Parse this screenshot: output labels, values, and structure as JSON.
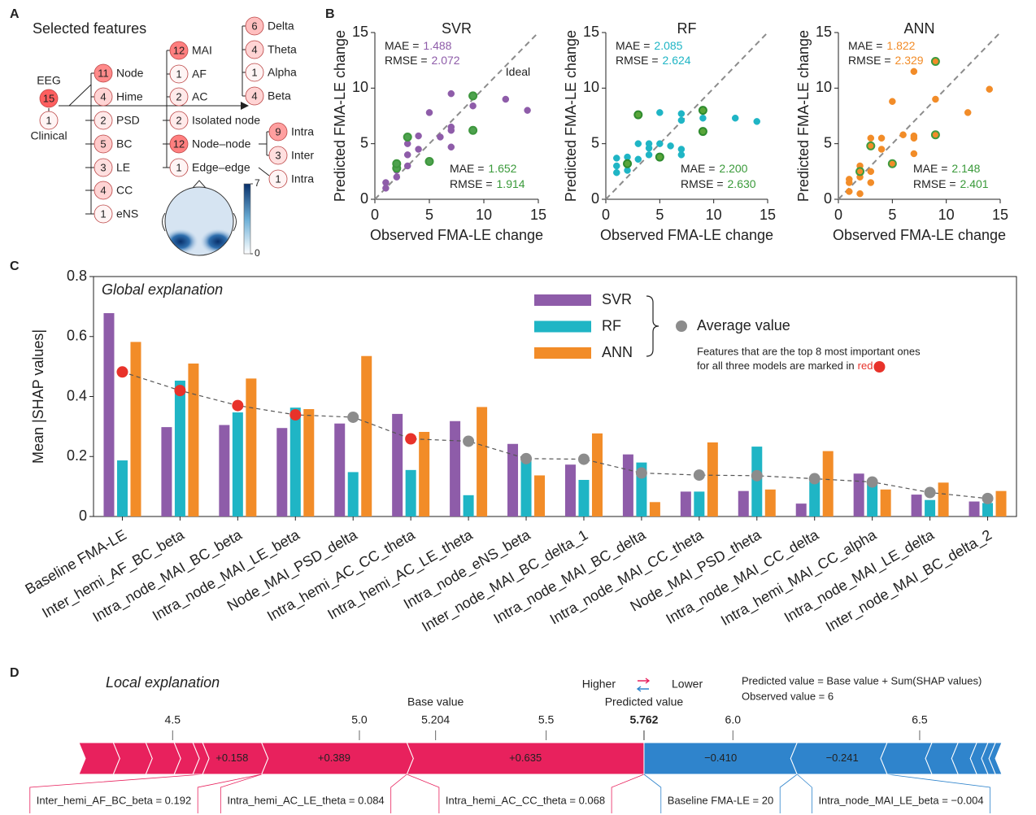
{
  "panel_labels": [
    "A",
    "B",
    "C",
    "D"
  ],
  "feature_tree": {
    "title": "Selected features",
    "nodes": [
      {
        "label": "EEG",
        "count": 15
      },
      {
        "label": "Clinical",
        "count": 1
      },
      {
        "label": "Node",
        "count": 11
      },
      {
        "label": "Hime",
        "count": 4
      },
      {
        "label": "PSD",
        "count": 2
      },
      {
        "label": "BC",
        "count": 5
      },
      {
        "label": "LE",
        "count": 3
      },
      {
        "label": "CC",
        "count": 4
      },
      {
        "label": "eNS",
        "count": 1
      },
      {
        "label": "MAI",
        "count": 12
      },
      {
        "label": "AF",
        "count": 1
      },
      {
        "label": "AC",
        "count": 2
      },
      {
        "label": "Isolated node",
        "count": 2
      },
      {
        "label": "Node–node",
        "count": 12
      },
      {
        "label": "Edge–edge",
        "count": 1
      },
      {
        "label": "Delta",
        "count": 6
      },
      {
        "label": "Theta",
        "count": 4
      },
      {
        "label": "Alpha",
        "count": 1
      },
      {
        "label": "Beta",
        "count": 4
      },
      {
        "label": "Intra",
        "count": 9
      },
      {
        "label": "Inter",
        "count": 3
      },
      {
        "label": "Intra",
        "count": 1
      }
    ]
  },
  "topomap": {
    "colorbar_ticks": [
      0,
      7
    ]
  },
  "chart_data": [
    {
      "type": "scatter",
      "title": "SVR",
      "xlabel": "Observed FMA-LE change",
      "ylabel": "Predicted FMA-LE change",
      "xlim": [
        0,
        15
      ],
      "ylim": [
        0,
        15
      ],
      "xticks": [
        0,
        5,
        10,
        15
      ],
      "yticks": [
        0,
        5,
        10,
        15
      ],
      "ideal_label": "Ideal",
      "series": [
        {
          "color": "#8e5ca9",
          "fill": "#8e5ca9",
          "x": [
            1,
            1,
            2,
            2,
            3,
            3,
            3,
            4,
            4,
            5,
            6,
            7,
            7,
            7,
            7,
            9,
            12,
            14
          ],
          "values": [
            1.0,
            1.5,
            2.0,
            2.6,
            4.0,
            5.0,
            3.0,
            5.7,
            4.5,
            7.8,
            5.6,
            9.5,
            6.5,
            6.2,
            4.7,
            8.4,
            9.0,
            8.0
          ]
        },
        {
          "color": "#3d963d",
          "fill": "#4ea24e",
          "x": [
            2,
            2,
            3,
            5,
            9,
            9
          ],
          "values": [
            2.8,
            3.2,
            5.6,
            3.4,
            9.3,
            6.2
          ]
        }
      ],
      "annotations": [
        {
          "label": "MAE =",
          "value": "1.488",
          "color": "#8e5ca9"
        },
        {
          "label": "RMSE =",
          "value": "2.072",
          "color": "#8e5ca9"
        },
        {
          "label": "MAE =",
          "value": "1.652",
          "color": "#3a9a3a"
        },
        {
          "label": "RMSE =",
          "value": "1.914",
          "color": "#3a9a3a"
        }
      ]
    },
    {
      "type": "scatter",
      "title": "RF",
      "xlabel": "Observed FMA-LE change",
      "ylabel": "Predicted FMA-LE change",
      "xlim": [
        0,
        15
      ],
      "ylim": [
        0,
        15
      ],
      "xticks": [
        0,
        5,
        10,
        15
      ],
      "yticks": [
        0,
        5,
        10,
        15
      ],
      "series": [
        {
          "color": "#1fb5c5",
          "fill": "#1fb5c5",
          "x": [
            1,
            1,
            1,
            2,
            2,
            3,
            3,
            4,
            4,
            4,
            5,
            5,
            6,
            7,
            7,
            7,
            7,
            9,
            12,
            14
          ],
          "values": [
            3.7,
            3.0,
            2.4,
            3.8,
            2.6,
            5.0,
            3.6,
            5.0,
            4.6,
            4.0,
            7.8,
            5.0,
            4.8,
            4.5,
            4.0,
            7.7,
            7.1,
            7.3,
            7.3,
            7.0
          ]
        },
        {
          "color": "#2e8b2e",
          "fill": "#5aa53a",
          "x": [
            2,
            3,
            5,
            9,
            9
          ],
          "values": [
            3.2,
            7.6,
            3.8,
            8.0,
            6.1
          ]
        }
      ],
      "annotations": [
        {
          "label": "MAE =",
          "value": "2.085",
          "color": "#1fb5c5"
        },
        {
          "label": "RMSE =",
          "value": "2.624",
          "color": "#1fb5c5"
        },
        {
          "label": "MAE =",
          "value": "2.200",
          "color": "#3a9a3a"
        },
        {
          "label": "RMSE =",
          "value": "2.630",
          "color": "#3a9a3a"
        }
      ]
    },
    {
      "type": "scatter",
      "title": "ANN",
      "xlabel": "Observed FMA-LE change",
      "ylabel": "Predicted FMA-LE change",
      "xlim": [
        0,
        15
      ],
      "ylim": [
        0,
        15
      ],
      "xticks": [
        0,
        5,
        10,
        15
      ],
      "yticks": [
        0,
        5,
        10,
        15
      ],
      "series": [
        {
          "color": "#f28c28",
          "fill": "#f28c28",
          "x": [
            1,
            1,
            1,
            2,
            2,
            2,
            3,
            3,
            3,
            4,
            4,
            5,
            6,
            7,
            7,
            7,
            7,
            9,
            12,
            14
          ],
          "values": [
            1.8,
            1.5,
            0.7,
            3.0,
            2.0,
            0.5,
            5.5,
            2.5,
            1.5,
            5.5,
            4.5,
            8.8,
            5.8,
            11.5,
            5.7,
            5.5,
            4.1,
            9.0,
            7.8,
            9.9
          ]
        },
        {
          "color": "#3f9b3f",
          "fill": "#f28c28",
          "x": [
            2,
            3,
            5,
            9,
            9
          ],
          "values": [
            2.5,
            4.8,
            3.2,
            12.4,
            5.8
          ]
        }
      ],
      "annotations": [
        {
          "label": "MAE =",
          "value": "1.822",
          "color": "#f28c28"
        },
        {
          "label": "RMSE =",
          "value": "2.329",
          "color": "#f28c28"
        },
        {
          "label": "MAE =",
          "value": "2.148",
          "color": "#3a9a3a"
        },
        {
          "label": "RMSE =",
          "value": "2.401",
          "color": "#3a9a3a"
        }
      ]
    },
    {
      "type": "bar",
      "title": "Global explanation",
      "ylabel": "Mean |SHAP values|",
      "ylim": [
        0,
        0.8
      ],
      "yticks": [
        0,
        0.2,
        0.4,
        0.6,
        0.8
      ],
      "categories": [
        "Baseline FMA-LE",
        "Inter_hemi_AF_BC_beta",
        "Intra_node_MAI_BC_beta",
        "Intra_node_MAI_LE_beta",
        "Node_MAI_PSD_delta",
        "Intra_hemi_AC_CC_theta",
        "Intra_hemi_AC_LE_theta",
        "Intra_node_eNS_beta",
        "Inter_node_MAI_BC_delta_1",
        "Intra_node_MAI_BC_delta",
        "Intra_node_MAI_CC_theta",
        "Node_MAI_PSD_theta",
        "Intra_node_MAI_CC_delta",
        "Intra_hemi_MAI_CC_alpha",
        "Intra_node_MAI_LE_delta",
        "Inter_node_MAI_BC_delta_2"
      ],
      "series": [
        {
          "name": "SVR",
          "color": "#8e5ca9",
          "values": [
            0.678,
            0.298,
            0.305,
            0.295,
            0.31,
            0.342,
            0.318,
            0.242,
            0.173,
            0.207,
            0.083,
            0.085,
            0.043,
            0.143,
            0.073,
            0.05
          ]
        },
        {
          "name": "RF",
          "color": "#1fb5c5",
          "values": [
            0.187,
            0.453,
            0.347,
            0.363,
            0.148,
            0.155,
            0.071,
            0.2,
            0.122,
            0.18,
            0.083,
            0.233,
            0.118,
            0.112,
            0.055,
            0.045
          ]
        },
        {
          "name": "ANN",
          "color": "#f28c28",
          "values": [
            0.582,
            0.51,
            0.46,
            0.358,
            0.535,
            0.282,
            0.365,
            0.137,
            0.277,
            0.048,
            0.247,
            0.09,
            0.218,
            0.09,
            0.113,
            0.085
          ]
        }
      ],
      "average": {
        "name": "Average value",
        "color": "#8c8c8c",
        "values": [
          0.482,
          0.42,
          0.37,
          0.339,
          0.331,
          0.259,
          0.251,
          0.193,
          0.191,
          0.145,
          0.138,
          0.136,
          0.126,
          0.115,
          0.08,
          0.06
        ],
        "point_colors": [
          "#e8322a",
          "#e8322a",
          "#e8322a",
          "#e8322a",
          "#8c8c8c",
          "#e8322a",
          "#8c8c8c",
          "#8c8c8c",
          "#8c8c8c",
          "#8c8c8c",
          "#8c8c8c",
          "#8c8c8c",
          "#8c8c8c",
          "#8c8c8c",
          "#8c8c8c",
          "#8c8c8c"
        ]
      },
      "note_lines": [
        "Features that are the top 8 most important ones",
        "for all three models are marked in"
      ],
      "note_highlight": "red",
      "highlight_color": "#e8322a"
    },
    {
      "type": "force",
      "title": "Local explanation",
      "xlim": [
        4.249,
        6.72
      ],
      "xticks": [
        4.5,
        {
          "value": 5,
          "label": "5.0"
        },
        5.5,
        {
          "value": 6,
          "label": "6.0"
        },
        6.5
      ],
      "base_value": 5.204,
      "base_label": "Base value",
      "predicted_value": 5.762,
      "predicted_label": "Predicted value",
      "higher_label": "Higher",
      "lower_label": "Lower",
      "notes": [
        "Predicted value = Base value + Sum(SHAP values)",
        "Observed value = 6"
      ],
      "positive": {
        "color": "#e8215d",
        "values": [
          0.635,
          0.389,
          0.158,
          0.026,
          0.05,
          0.076,
          0.087,
          0.092
        ],
        "value_labels": [
          "+0.635",
          "+0.389",
          "+0.158",
          null,
          null,
          null,
          null,
          null
        ],
        "features": [
          "Intra_hemi_AC_CC_theta = 0.068",
          "Intra_hemi_AC_LE_theta = 0.084",
          "Inter_hemi_AF_BC_beta = 0.192",
          null,
          null,
          null,
          null,
          null
        ]
      },
      "negative": {
        "color": "#2f84cc",
        "values": [
          -0.41,
          -0.241,
          -0.12,
          -0.07,
          -0.05,
          -0.03,
          -0.02,
          -0.017
        ],
        "value_labels": [
          "−0.410",
          "−0.241",
          null,
          null,
          null,
          null,
          null,
          null
        ],
        "features": [
          "Baseline FMA-LE = 20",
          "Intra_node_MAI_LE_beta = −0.004",
          null,
          null,
          null,
          null,
          null,
          null
        ]
      }
    }
  ]
}
